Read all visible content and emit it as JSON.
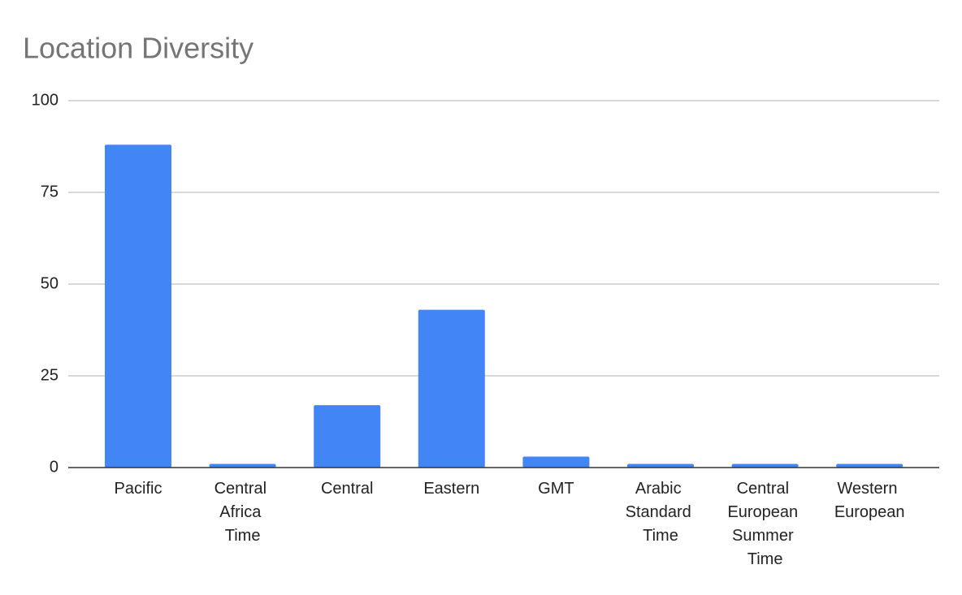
{
  "chart_data": {
    "type": "bar",
    "title": "Location Diversity",
    "categories": [
      "Pacific",
      "Central Africa Time",
      "Central",
      "Eastern",
      "GMT",
      "Arabic Standard Time",
      "Central European Summer Time",
      "Western European"
    ],
    "values": [
      88,
      1,
      17,
      43,
      3,
      1,
      1,
      1
    ],
    "color": "#4285f4",
    "ylim": [
      0,
      100
    ],
    "yticks": [
      0,
      25,
      50,
      75,
      100
    ],
    "grid": true
  }
}
